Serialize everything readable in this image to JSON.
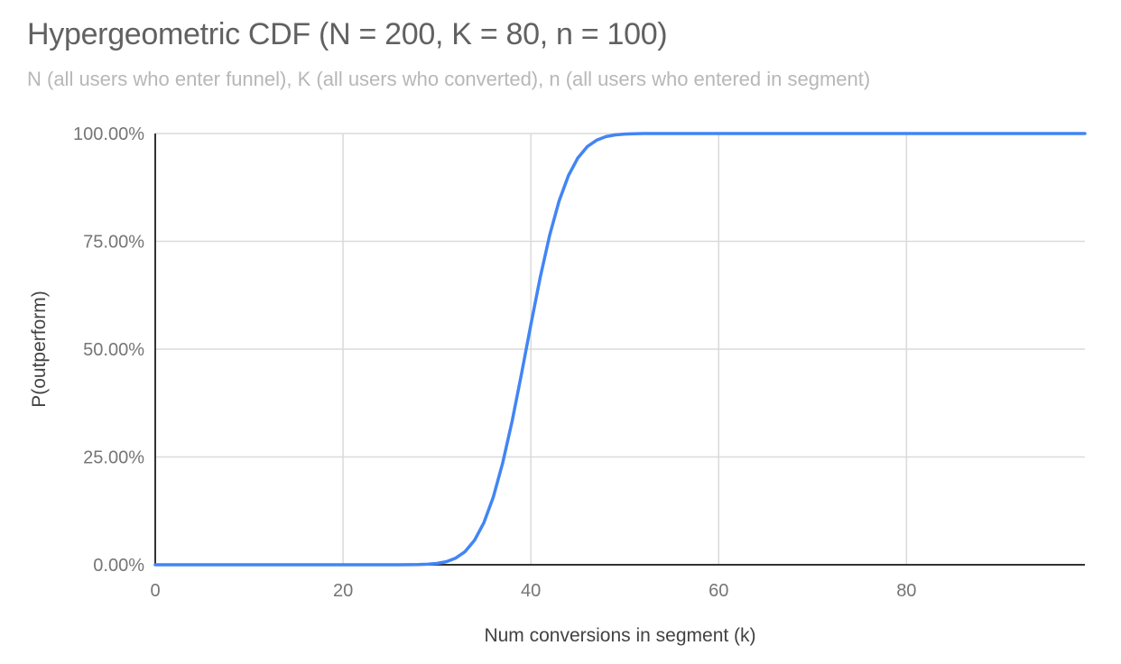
{
  "colors": {
    "background": "#ffffff",
    "series_line": "#4285f4",
    "axis_line": "#333333",
    "gridline": "#dadada",
    "title_text": "#616161",
    "subtitle_text": "#b7b7b7",
    "tick_text": "#757575",
    "axis_title_text": "#424242"
  },
  "chart_data": {
    "type": "line",
    "title": "Hypergeometric CDF (N = 200, K = 80, n = 100)",
    "subtitle": "N (all users who enter funnel), K (all users who converted), n (all users who entered in segment)",
    "xlabel": "Num conversions in segment (k)",
    "ylabel": "P(outperform)",
    "params": {
      "N": 200,
      "K": 80,
      "n": 100
    },
    "xlim": [
      0,
      99
    ],
    "ylim": [
      0,
      100
    ],
    "y_units": "percent",
    "x_ticks": [
      0,
      20,
      40,
      60,
      80
    ],
    "y_ticks": [
      {
        "value": 0,
        "label": "0.00%"
      },
      {
        "value": 25,
        "label": "25.00%"
      },
      {
        "value": 50,
        "label": "50.00%"
      },
      {
        "value": 75,
        "label": "75.00%"
      },
      {
        "value": 100,
        "label": "100.00%"
      }
    ],
    "grid": "on",
    "legend": "none",
    "series": [
      {
        "name": "P(outperform)",
        "color": "#4285f4",
        "points": [
          [
            0,
            0
          ],
          [
            5,
            0
          ],
          [
            10,
            0
          ],
          [
            15,
            0
          ],
          [
            20,
            0
          ],
          [
            24,
            0
          ],
          [
            25,
            0.004
          ],
          [
            26,
            0.01
          ],
          [
            27,
            0.02
          ],
          [
            28,
            0.05
          ],
          [
            29,
            0.13
          ],
          [
            30,
            0.31
          ],
          [
            31,
            0.72
          ],
          [
            32,
            1.54
          ],
          [
            33,
            3.06
          ],
          [
            34,
            5.66
          ],
          [
            35,
            9.75
          ],
          [
            36,
            15.67
          ],
          [
            37,
            23.58
          ],
          [
            38,
            33.29
          ],
          [
            39,
            44.28
          ],
          [
            40,
            55.72
          ],
          [
            41,
            66.71
          ],
          [
            42,
            76.42
          ],
          [
            43,
            84.33
          ],
          [
            44,
            90.25
          ],
          [
            45,
            94.34
          ],
          [
            46,
            96.94
          ],
          [
            47,
            98.46
          ],
          [
            48,
            99.28
          ],
          [
            49,
            99.69
          ],
          [
            50,
            99.88
          ],
          [
            51,
            99.96
          ],
          [
            52,
            99.99
          ],
          [
            54,
            100
          ],
          [
            56,
            100
          ],
          [
            60,
            100
          ],
          [
            70,
            100
          ],
          [
            80,
            100
          ],
          [
            90,
            100
          ],
          [
            99,
            100
          ]
        ]
      }
    ]
  }
}
